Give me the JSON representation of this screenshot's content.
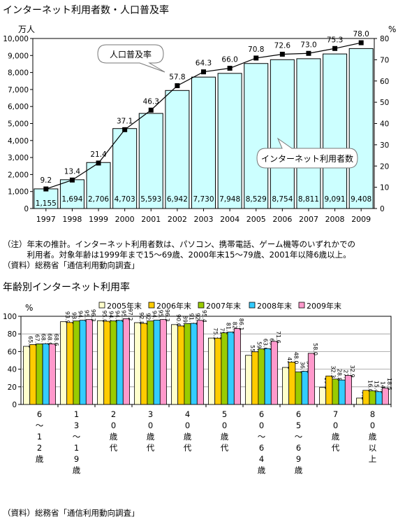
{
  "titles": {
    "chart1": "インターネット利用者数・人口普及率",
    "chart2": "年齢別インターネット利用率"
  },
  "notes": {
    "note1_line1": "（注）年末の推計。インターネット利用者数は、パソコン、携帯電話、ゲーム機等のいずれかでの",
    "note1_line2": "　　　利用者。対象年齢は1999年まで15～69歳、2000年末15～79歳、2001年以降6歳以上。",
    "note1_line3": "（資料）総務省「通信利用動向調査」",
    "note2": "（資料）総務省「通信利用動向調査」"
  },
  "colors": {
    "users_bar": "#ccffff",
    "bar_stroke": "#000000",
    "line": "#000000",
    "s2005": "#ffffcc",
    "s2006": "#ffcc00",
    "s2007": "#99cc00",
    "s2008": "#33ccff",
    "s2009": "#ff99cc"
  },
  "chart_data": [
    {
      "type": "bar",
      "title": "インターネット利用者数・人口普及率",
      "categories": [
        "1997",
        "1998",
        "1999",
        "2000",
        "2001",
        "2002",
        "2003",
        "2004",
        "2005",
        "2006",
        "2007",
        "2008",
        "2009"
      ],
      "left_axis_unit": "万人",
      "right_axis_unit": "%",
      "ylim_left": [
        0,
        10000
      ],
      "yticks_left": [
        "0",
        "1,000",
        "2,000",
        "3,000",
        "4,000",
        "5,000",
        "6,000",
        "7,000",
        "8,000",
        "9,000",
        "10,000"
      ],
      "ylim_right": [
        0,
        80
      ],
      "yticks_right": [
        "0",
        "10",
        "20",
        "30",
        "40",
        "50",
        "60",
        "70",
        "80"
      ],
      "grid": false,
      "series": [
        {
          "name": "インターネット利用者数",
          "kind": "bar",
          "axis": "left",
          "values": [
            1155,
            1694,
            2706,
            4703,
            5593,
            6942,
            7730,
            7948,
            8529,
            8754,
            8811,
            9091,
            9408
          ],
          "labels": [
            "1,155",
            "1,694",
            "2,706",
            "4,703",
            "5,593",
            "6,942",
            "7,730",
            "7,948",
            "8,529",
            "8,754",
            "8,811",
            "9,091",
            "9,408"
          ]
        },
        {
          "name": "人口普及率",
          "kind": "line",
          "axis": "right",
          "values": [
            9.2,
            13.4,
            21.4,
            37.1,
            46.3,
            57.8,
            64.3,
            66.0,
            70.8,
            72.6,
            73.0,
            75.3,
            78.0
          ],
          "labels": [
            "9.2",
            "13.4",
            "21.4",
            "37.1",
            "46.3",
            "57.8",
            "64.3",
            "66.0",
            "70.8",
            "72.6",
            "73.0",
            "75.3",
            "78.0"
          ]
        }
      ]
    },
    {
      "type": "bar",
      "title": "年齢別インターネット利用率",
      "ylabel": "%",
      "ylim": [
        0,
        100
      ],
      "yticks": [
        "0",
        "20",
        "40",
        "60",
        "80",
        "100"
      ],
      "grid": true,
      "legend_position": "top",
      "categories": [
        [
          "6",
          "～",
          "1",
          "2",
          "歳"
        ],
        [
          "1",
          "3",
          "～",
          "1",
          "9",
          "歳"
        ],
        [
          "2",
          "0",
          "歳",
          "代"
        ],
        [
          "3",
          "0",
          "歳",
          "代"
        ],
        [
          "4",
          "0",
          "歳",
          "代"
        ],
        [
          "5",
          "0",
          "歳",
          "代"
        ],
        [
          "6",
          "0",
          "～",
          "6",
          "4",
          "歳"
        ],
        [
          "6",
          "5",
          "～",
          "6",
          "9",
          "歳"
        ],
        [
          "7",
          "0",
          "歳",
          "代"
        ],
        [
          "8",
          "0",
          "歳",
          "以",
          "上"
        ]
      ],
      "series": [
        {
          "name": "2005年末",
          "values": [
            65.9,
            93.9,
            95.0,
            92.8,
            90.6,
            75.3,
            55.7,
            42.0,
            19.3,
            7.2
          ]
        },
        {
          "name": "2006年末",
          "values": [
            67.9,
            93.0,
            94.4,
            92.0,
            89.0,
            75.2,
            59.7,
            48.0,
            32.3,
            16.0
          ]
        },
        {
          "name": "2007年末",
          "values": [
            68.7,
            94.7,
            94.8,
            94.7,
            91.7,
            81.2,
            63.0,
            36.9,
            28.8,
            15.4
          ]
        },
        {
          "name": "2008年末",
          "values": [
            68.9,
            95.5,
            95.3,
            95.7,
            92.0,
            82.1,
            63.4,
            37.6,
            27.7,
            14.5
          ]
        },
        {
          "name": "2009年末",
          "values": [
            68.6,
            96.3,
            97.2,
            96.3,
            95.4,
            86.1,
            71.6,
            58.0,
            32.9,
            18.5
          ]
        }
      ]
    }
  ]
}
